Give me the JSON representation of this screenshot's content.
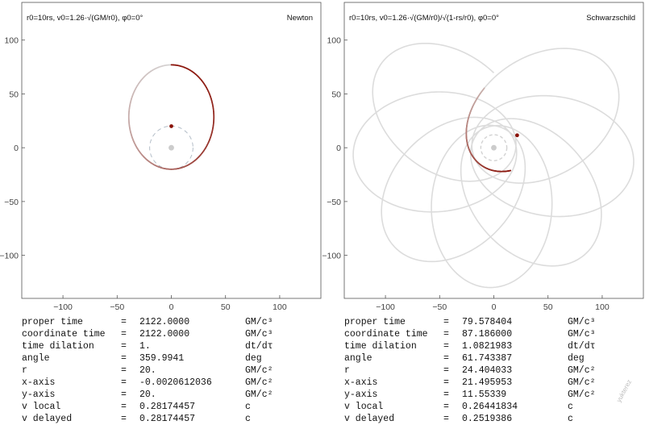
{
  "chart_data": [
    {
      "type": "line",
      "title": "Newton",
      "subtitle": "r0=10rs, v0=1.26·√(GM/r0), φ0=0°",
      "xlabel": "",
      "ylabel": "",
      "xlim": [
        -138,
        138
      ],
      "ylim": [
        -140,
        135
      ],
      "xticks": [
        -100,
        -50,
        0,
        50,
        100
      ],
      "yticks": [
        100,
        50,
        0,
        -50,
        -100
      ],
      "grid": false,
      "orbit": {
        "apoapsis": 20,
        "periapsis": 77,
        "orientation_deg": 270,
        "precession_deg_per_orbit": 0,
        "revolutions": 1.0
      },
      "event_horizon_radius": 20,
      "central_mass": [
        0,
        0
      ],
      "current_position": [
        -0.0020612036,
        20
      ],
      "colors": {
        "trail_head": "#8a1208",
        "trail_tail": "#d7d7d7",
        "horizon": "#b4bec8",
        "mass": "#cccccc"
      }
    },
    {
      "type": "line",
      "title": "Schwarzschild",
      "subtitle": "r0=10rs, v0=1.26·√(GM/r0)/√(1-rs/r0), φ0=0°",
      "xlabel": "",
      "ylabel": "",
      "xlim": [
        -138,
        138
      ],
      "ylim": [
        -140,
        135
      ],
      "xticks": [
        -100,
        -50,
        0,
        50,
        100
      ],
      "yticks": [
        100,
        50,
        0,
        -50,
        -100
      ],
      "grid": false,
      "orbit": {
        "apoapsis": 20,
        "periapsis": 130,
        "orientation_deg": 270,
        "precession_deg_per_orbit": 37.5,
        "revolutions": 7.6,
        "trail_fraction_of_last_orbit": 1.15
      },
      "event_horizon_radius": 12,
      "central_mass": [
        0,
        0
      ],
      "current_position": [
        21.495953,
        11.55339
      ],
      "colors": {
        "trail_head": "#8a1208",
        "trail_tail": "#c9b4b0",
        "history": "#dcdcdc",
        "mass": "#cccccc"
      }
    }
  ],
  "readout_left": [
    {
      "label": "proper time",
      "eq": "=",
      "value": "2122.0000",
      "unit": "GM/c³"
    },
    {
      "label": "coordinate time",
      "eq": "=",
      "value": "2122.0000",
      "unit": "GM/c³"
    },
    {
      "label": "time dilation",
      "eq": "=",
      "value": "1.",
      "unit": "dt/dτ"
    },
    {
      "label": "angle",
      "eq": "=",
      "value": "359.9941",
      "unit": "deg"
    },
    {
      "label": "r",
      "eq": "=",
      "value": "20.",
      "unit": "GM/c²"
    },
    {
      "label": "x-axis",
      "eq": "=",
      "value": "-0.0020612036",
      "unit": "GM/c²"
    },
    {
      "label": "y-axis",
      "eq": "=",
      "value": "20.",
      "unit": "GM/c²"
    },
    {
      "label": "v local",
      "eq": "=",
      "value": "0.28174457",
      "unit": "c"
    },
    {
      "label": "v delayed",
      "eq": "=",
      "value": "0.28174457",
      "unit": "c"
    }
  ],
  "readout_right": [
    {
      "label": "proper time",
      "eq": "=",
      "value": "79.578404",
      "unit": "GM/c³"
    },
    {
      "label": "coordinate time",
      "eq": "=",
      "value": "87.186000",
      "unit": "GM/c³"
    },
    {
      "label": "time dilation",
      "eq": "=",
      "value": "1.0821983",
      "unit": "dt/dτ"
    },
    {
      "label": "angle",
      "eq": "=",
      "value": "61.743387",
      "unit": "deg"
    },
    {
      "label": "r",
      "eq": "=",
      "value": "24.404033",
      "unit": "GM/c²"
    },
    {
      "label": "x-axis",
      "eq": "=",
      "value": "21.495953",
      "unit": "GM/c²"
    },
    {
      "label": "y-axis",
      "eq": "=",
      "value": "11.55339",
      "unit": "GM/c²"
    },
    {
      "label": "v local",
      "eq": "=",
      "value": "0.26441834",
      "unit": "c"
    },
    {
      "label": "v delayed",
      "eq": "=",
      "value": "0.2519386",
      "unit": "c"
    }
  ],
  "watermark": "yukterez"
}
